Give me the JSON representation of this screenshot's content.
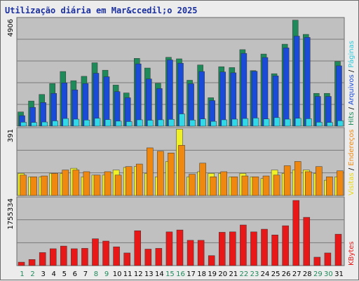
{
  "chart_data": {
    "type": "bar",
    "title": "Utilização diária em Mar&ccedil;o 2025",
    "days": [
      "1",
      "2",
      "3",
      "4",
      "5",
      "6",
      "7",
      "8",
      "9",
      "10",
      "11",
      "12",
      "13",
      "14",
      "15",
      "16",
      "17",
      "18",
      "19",
      "20",
      "21",
      "22",
      "23",
      "24",
      "25",
      "26",
      "27",
      "28",
      "29",
      "30",
      "31"
    ],
    "weekend_days": [
      1,
      2,
      8,
      9,
      15,
      16,
      22,
      23,
      29,
      30
    ],
    "panels": [
      {
        "name": "traffic-top",
        "max_label": "4906",
        "ylim": [
          0,
          4906
        ],
        "series": [
          {
            "key": "hits",
            "color": "#1e8a5a",
            "values": [
              650,
              1150,
              1450,
              1950,
              2500,
              2080,
              2280,
              2900,
              2560,
              1880,
              1520,
              3100,
              2660,
              1960,
              3150,
              3080,
              2100,
              2800,
              1300,
              2720,
              2680,
              3500,
              2540,
              3300,
              2400,
              3750,
              4850,
              4200,
              1500,
              1500,
              2960
            ]
          },
          {
            "key": "arquivos",
            "color": "#1a4ad8",
            "values": [
              480,
              860,
              1080,
              1500,
              1980,
              1660,
              1950,
              2420,
              2260,
              1580,
              1300,
              2850,
              2160,
              1720,
              3030,
              2880,
              1940,
              2500,
              1170,
              2480,
              2440,
              3330,
              2510,
              3140,
              2300,
              3580,
              4120,
              4060,
              1360,
              1360,
              2760
            ]
          },
          {
            "key": "paginas",
            "color": "#30d8e8",
            "values": [
              180,
              170,
              190,
              240,
              350,
              320,
              280,
              360,
              300,
              230,
              210,
              290,
              270,
              290,
              310,
              560,
              280,
              330,
              220,
              290,
              320,
              350,
              370,
              330,
              390,
              320,
              360,
              340,
              180,
              170,
              250
            ]
          }
        ]
      },
      {
        "name": "traffic-mid",
        "max_label": "391",
        "ylim": [
          0,
          391
        ],
        "series": [
          {
            "key": "visitas",
            "color": "#f0f028",
            "values": [
              130,
              110,
              110,
              130,
              130,
              160,
              110,
              120,
              120,
              150,
              165,
              170,
              130,
              110,
              200,
              390,
              110,
              140,
              130,
              130,
              110,
              130,
              110,
              100,
              150,
              130,
              150,
              150,
              130,
              90,
              110
            ]
          },
          {
            "key": "enderecos",
            "color": "#f08810",
            "values": [
              120,
              110,
              115,
              130,
              150,
              150,
              140,
              120,
              140,
              120,
              170,
              185,
              280,
              260,
              250,
              295,
              125,
              190,
              110,
              140,
              110,
              115,
              110,
              115,
              120,
              175,
              200,
              140,
              170,
              110,
              145
            ]
          }
        ]
      },
      {
        "name": "traffic-bottom",
        "max_label": "1755334",
        "ylim": [
          0,
          1755334
        ],
        "series": [
          {
            "key": "kbytes",
            "color": "#e81818",
            "values": [
              90000,
              160000,
              340000,
              440000,
              510000,
              440000,
              450000,
              700000,
              640000,
              490000,
              330000,
              910000,
              430000,
              450000,
              880000,
              930000,
              660000,
              660000,
              260000,
              870000,
              880000,
              1060000,
              880000,
              950000,
              800000,
              1040000,
              1700000,
              1260000,
              220000,
              330000,
              820000
            ]
          }
        ]
      }
    ],
    "legend_top": [
      {
        "text": "Hits",
        "color": "#1e8a5a"
      },
      {
        "text": "/",
        "color": "#000000"
      },
      {
        "text": "Arquivos",
        "color": "#1a4ad8"
      },
      {
        "text": "/",
        "color": "#000000"
      },
      {
        "text": "Páginas",
        "color": "#30c8d8"
      }
    ],
    "legend_mid": [
      {
        "text": "Visitas",
        "color": "#e8d810"
      },
      {
        "text": "/",
        "color": "#000000"
      },
      {
        "text": "Endereços",
        "color": "#f08810"
      }
    ],
    "legend_bottom": [
      {
        "text": "KBytes",
        "color": "#e81818"
      }
    ],
    "colors": {
      "plot_bg": "#c0c0c0",
      "grid": "#7a7a7a",
      "weekday_label": "#000000",
      "weekend_label": "#1e8a5a"
    }
  }
}
